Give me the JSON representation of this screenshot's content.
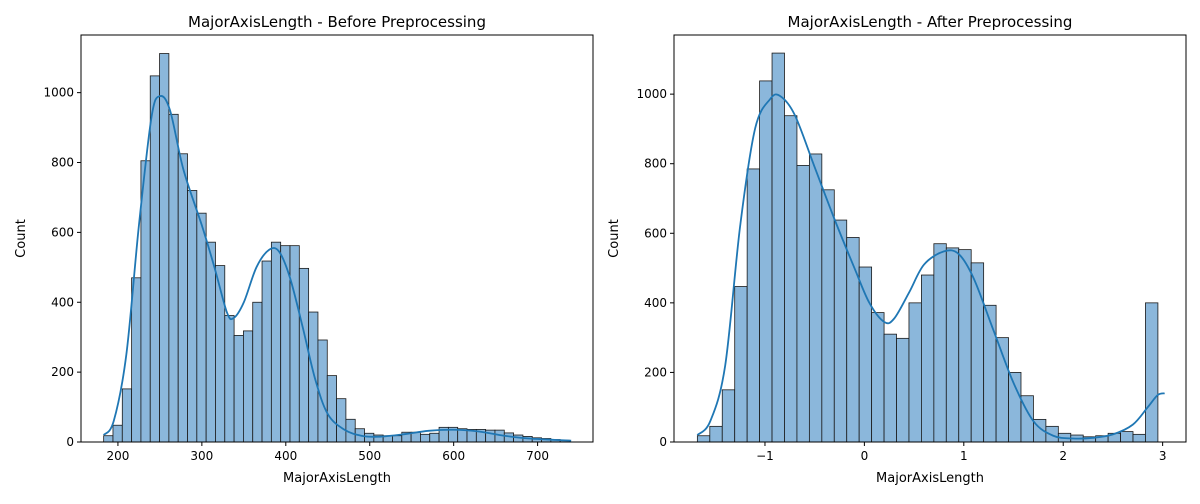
{
  "colors": {
    "bar_fill": "#8bb7db",
    "bar_edge": "#1a1a1a",
    "kde_line": "#1f77b4"
  },
  "chart_data": [
    {
      "type": "histogram",
      "title": "MajorAxisLength - Before Preprocessing",
      "xlabel": "MajorAxisLength",
      "ylabel": "Count",
      "xlim": [
        156,
        766
      ],
      "ylim": [
        0,
        1165
      ],
      "xticks": [
        200,
        300,
        400,
        500,
        600,
        700
      ],
      "yticks": [
        0,
        200,
        400,
        600,
        800,
        1000
      ],
      "bin_start": 183,
      "bin_width": 11.1,
      "counts": [
        18,
        48,
        152,
        470,
        805,
        1048,
        1112,
        938,
        825,
        720,
        655,
        572,
        505,
        362,
        305,
        318,
        400,
        518,
        572,
        562,
        562,
        497,
        372,
        292,
        190,
        124,
        65,
        38,
        25,
        20,
        18,
        18,
        28,
        28,
        22,
        25,
        42,
        42,
        38,
        36,
        36,
        34,
        34,
        26,
        20,
        16,
        12,
        10,
        7,
        5
      ],
      "kde": [
        [
          183,
          20
        ],
        [
          195,
          60
        ],
        [
          210,
          250
        ],
        [
          225,
          620
        ],
        [
          240,
          930
        ],
        [
          250,
          990
        ],
        [
          262,
          950
        ],
        [
          278,
          780
        ],
        [
          300,
          620
        ],
        [
          315,
          500
        ],
        [
          330,
          370
        ],
        [
          338,
          355
        ],
        [
          350,
          400
        ],
        [
          365,
          500
        ],
        [
          380,
          550
        ],
        [
          392,
          545
        ],
        [
          405,
          470
        ],
        [
          420,
          330
        ],
        [
          435,
          180
        ],
        [
          450,
          80
        ],
        [
          470,
          35
        ],
        [
          490,
          18
        ],
        [
          510,
          15
        ],
        [
          540,
          22
        ],
        [
          570,
          32
        ],
        [
          600,
          35
        ],
        [
          630,
          30
        ],
        [
          660,
          18
        ],
        [
          690,
          10
        ],
        [
          740,
          4
        ]
      ],
      "grid": false,
      "legend": "none"
    },
    {
      "type": "histogram",
      "title": "MajorAxisLength - After Preprocessing",
      "xlabel": "MajorAxisLength",
      "ylabel": "Count",
      "xlim": [
        -1.915,
        3.235
      ],
      "ylim": [
        0,
        1170
      ],
      "xticks": [
        -1,
        0,
        1,
        2,
        3
      ],
      "yticks": [
        0,
        200,
        400,
        600,
        800,
        1000
      ],
      "bin_start": -1.68,
      "bin_width": 0.1252,
      "counts": [
        18,
        45,
        150,
        447,
        785,
        1038,
        1118,
        938,
        795,
        828,
        725,
        638,
        588,
        503,
        372,
        310,
        298,
        400,
        480,
        570,
        558,
        553,
        515,
        393,
        300,
        200,
        133,
        65,
        45,
        25,
        20,
        15,
        18,
        25,
        30,
        22,
        400
      ],
      "kde": [
        [
          -1.68,
          20
        ],
        [
          -1.55,
          60
        ],
        [
          -1.4,
          220
        ],
        [
          -1.25,
          620
        ],
        [
          -1.1,
          900
        ],
        [
          -0.95,
          985
        ],
        [
          -0.85,
          995
        ],
        [
          -0.7,
          940
        ],
        [
          -0.5,
          790
        ],
        [
          -0.3,
          640
        ],
        [
          -0.1,
          500
        ],
        [
          0.05,
          400
        ],
        [
          0.2,
          345
        ],
        [
          0.3,
          355
        ],
        [
          0.45,
          430
        ],
        [
          0.6,
          510
        ],
        [
          0.8,
          548
        ],
        [
          0.95,
          540
        ],
        [
          1.1,
          470
        ],
        [
          1.3,
          320
        ],
        [
          1.5,
          170
        ],
        [
          1.7,
          60
        ],
        [
          1.9,
          18
        ],
        [
          2.1,
          10
        ],
        [
          2.3,
          12
        ],
        [
          2.5,
          22
        ],
        [
          2.7,
          50
        ],
        [
          2.85,
          100
        ],
        [
          2.95,
          135
        ],
        [
          3.02,
          140
        ]
      ],
      "grid": false,
      "legend": "none"
    }
  ]
}
